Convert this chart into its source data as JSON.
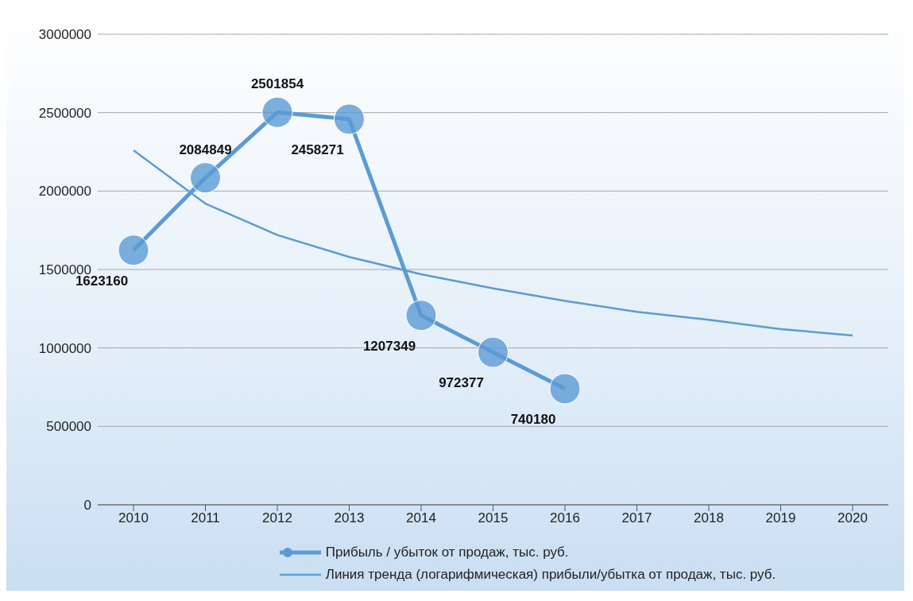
{
  "chart_data": {
    "type": "line",
    "categories": [
      "2010",
      "2011",
      "2012",
      "2013",
      "2014",
      "2015",
      "2016",
      "2017",
      "2018",
      "2019",
      "2020"
    ],
    "series": [
      {
        "name": "Прибыль / убыток от продаж, тыс. руб.",
        "color": "#5b9bd5",
        "marker": "circle",
        "values": [
          1623160,
          2084849,
          2501854,
          2458271,
          1207349,
          972377,
          740180,
          null,
          null,
          null,
          null
        ],
        "value_labels": [
          "1623160",
          "2084849",
          "2501854",
          "2458271",
          "1207349",
          "972377",
          "740180",
          null,
          null,
          null,
          null
        ]
      },
      {
        "name": "Линия тренда (логарифмическая) прибыли/убытка от продаж, тыс. руб.",
        "color": "#5b9bd5",
        "marker": "none",
        "values": [
          2260000,
          1920000,
          1720000,
          1580000,
          1470000,
          1380000,
          1300000,
          1230000,
          1180000,
          1120000,
          1080000
        ]
      }
    ],
    "ylim": [
      0,
      3000000
    ],
    "yticks": [
      0,
      500000,
      1000000,
      1500000,
      2000000,
      2500000,
      3000000
    ],
    "grid": "y",
    "legend": "bottom"
  }
}
